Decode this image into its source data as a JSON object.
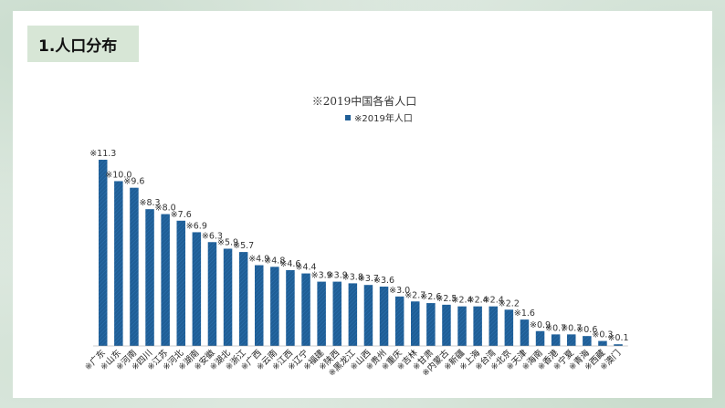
{
  "slide": {
    "heading": "1.人口分布"
  },
  "chart_data": {
    "type": "bar",
    "title": "※2019中国各省人口",
    "legend": [
      "※2019年人口"
    ],
    "legend_position": "top",
    "grid": false,
    "bar_color": "#1f5e96",
    "label_prefix": "※",
    "categories": [
      "广东",
      "山东",
      "河南",
      "四川",
      "江苏",
      "河北",
      "湖南",
      "安徽",
      "湖北",
      "浙江",
      "广西",
      "云南",
      "江西",
      "辽宁",
      "福建",
      "陕西",
      "黑龙江",
      "山西",
      "贵州",
      "重庆",
      "吉林",
      "甘肃",
      "内蒙古",
      "新疆",
      "上海",
      "台湾",
      "北京",
      "天津",
      "海南",
      "香港",
      "宁夏",
      "青海",
      "西藏",
      "澳门"
    ],
    "series": [
      {
        "name": "※2019年人口",
        "values": [
          11.3,
          10.0,
          9.6,
          8.3,
          8.0,
          7.6,
          6.9,
          6.3,
          5.9,
          5.7,
          4.9,
          4.8,
          4.6,
          4.4,
          3.9,
          3.9,
          3.8,
          3.7,
          3.6,
          3.0,
          2.7,
          2.6,
          2.5,
          2.4,
          2.4,
          2.4,
          2.2,
          1.6,
          0.9,
          0.7,
          0.7,
          0.6,
          0.3,
          0.1
        ],
        "labels": [
          "11.3",
          "10.0",
          "9.6",
          "8.3",
          "8.0",
          "7.6",
          "6.9",
          "6.3",
          "5.9",
          "5.7",
          "4.9",
          "4.8",
          "4.6",
          "4.4",
          "3.9",
          "3.9",
          "3.8",
          "3.7",
          "3.6",
          "3.0",
          "2.7",
          "2.6",
          "2.5",
          "2.4",
          "2.4",
          "2.4",
          "2.2",
          "1.6",
          "0.9",
          "0.7",
          "0.7",
          "0.6",
          "0.3",
          "0.1"
        ]
      }
    ],
    "ylim": [
      0,
      11.3
    ]
  }
}
